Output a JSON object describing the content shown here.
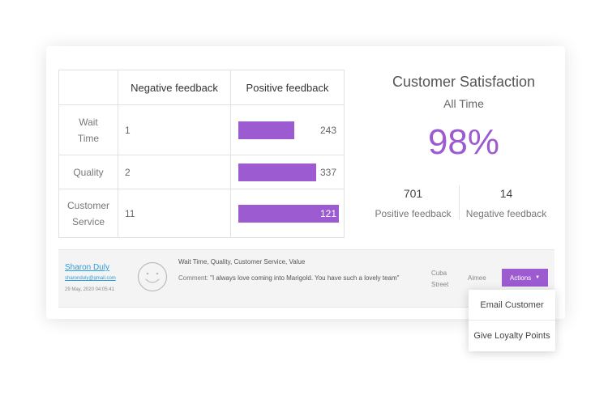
{
  "table": {
    "headers": [
      "",
      "Negative feedback",
      "Positive feedback"
    ],
    "rows": [
      {
        "label_lines": [
          "Wait",
          "Time"
        ],
        "negative": "1",
        "positive": "243",
        "positive_value": 243
      },
      {
        "label_lines": [
          "Quality"
        ],
        "negative": "2",
        "positive": "337",
        "positive_value": 337
      },
      {
        "label_lines": [
          "Customer",
          "Service"
        ],
        "negative": "11",
        "positive": "121",
        "positive_value": 121
      }
    ],
    "bar_color": "#9c5bd0"
  },
  "satisfaction": {
    "title": "Customer Satisfaction",
    "period": "All Time",
    "percent": "98%",
    "positive_count": "701",
    "positive_label": "Positive feedback",
    "negative_count": "14",
    "negative_label": "Negative feedback",
    "accent": "#9c5bd0"
  },
  "entry": {
    "name": "Sharon Duly",
    "email": "sharonduly@gmail.com",
    "date": "29 May, 2020 04:05:41",
    "tags": "Wait Time, Quality, Customer Service, Value",
    "comment_label": "Comment:",
    "comment_text": "\"I always love coming into Marigold. You have such a lovely team\"",
    "location_lines": [
      "Cuba",
      "Street"
    ],
    "staff": "Aimee",
    "actions_label": "Actions",
    "face_icon": "smiley-face-icon"
  },
  "dropdown": {
    "items": [
      "Email Customer",
      "Give Loyalty Points"
    ]
  }
}
